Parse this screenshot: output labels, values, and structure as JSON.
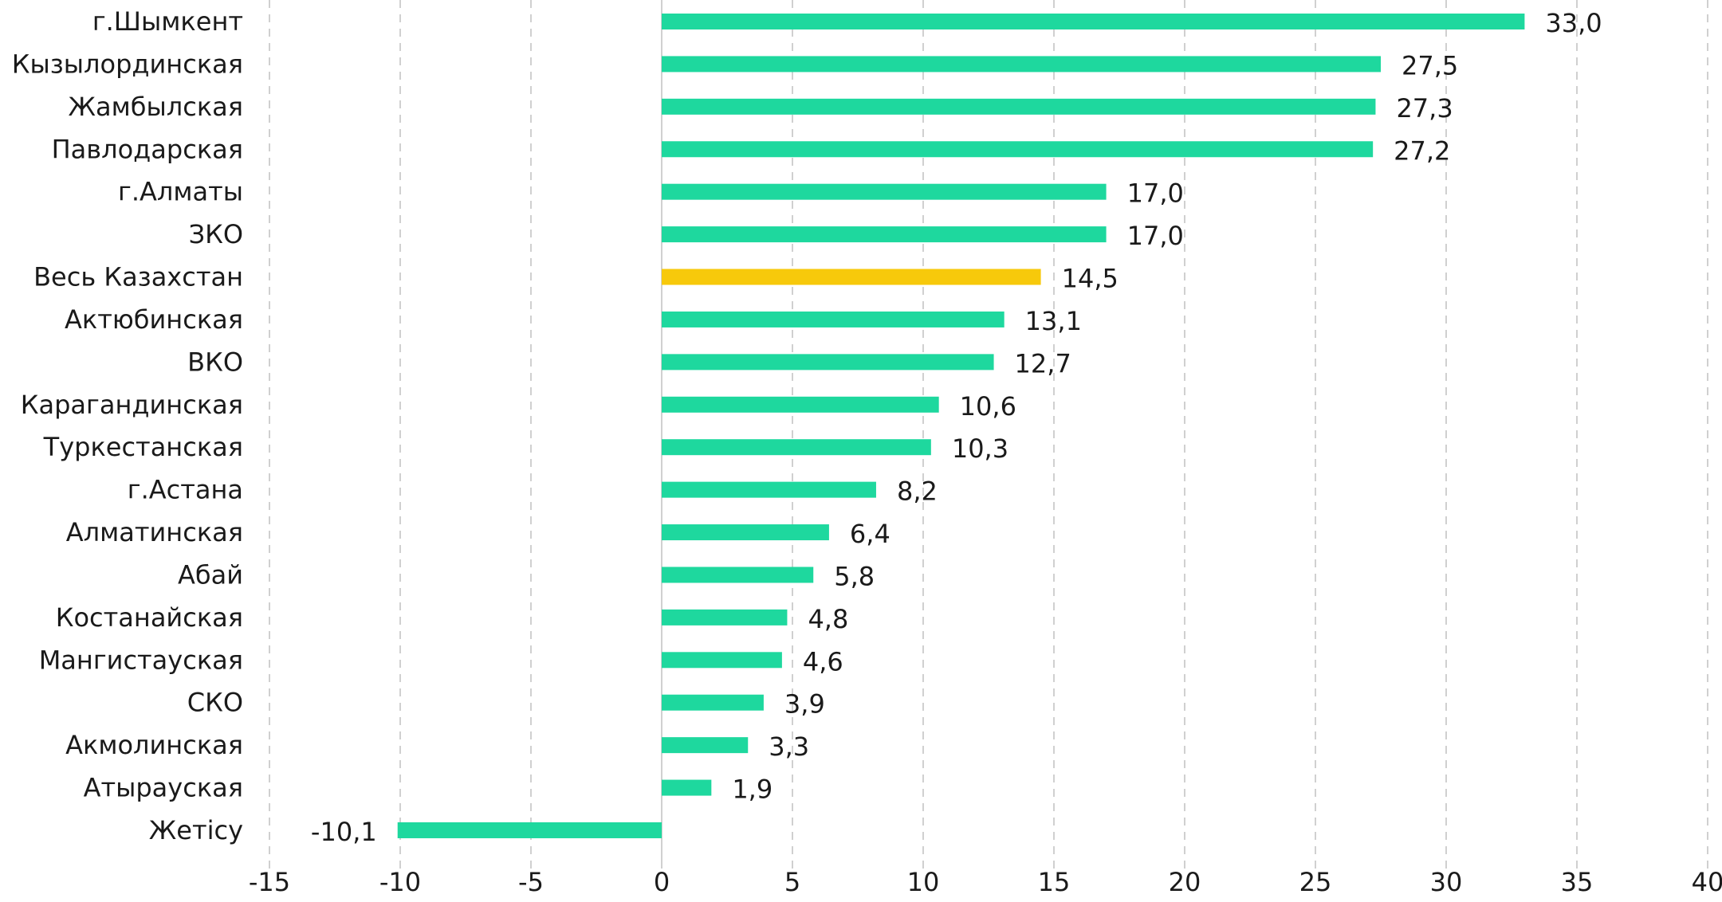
{
  "chart_data": {
    "type": "bar",
    "orientation": "horizontal",
    "title": "",
    "xlabel": "",
    "ylabel": "",
    "xlim": [
      -15,
      40
    ],
    "x_ticks": [
      -15,
      -10,
      -5,
      0,
      5,
      10,
      15,
      20,
      25,
      30,
      35,
      40
    ],
    "grid": "vertical dashed",
    "legend": "none",
    "categories": [
      "г.Шымкент",
      "Кызылординская",
      "Жамбылская",
      "Павлодарская",
      "г.Алматы",
      "ЗКО",
      "Весь Казахстан",
      "Актюбинская",
      "ВКО",
      "Карагандинская",
      "Туркестанская",
      "г.Астана",
      "Алматинская",
      "Абай",
      "Костанайская",
      "Мангистауская",
      "СКО",
      "Акмолинская",
      "Атырауская",
      "Жетісу"
    ],
    "values": [
      33.0,
      27.5,
      27.3,
      27.2,
      17.0,
      17.0,
      14.5,
      13.1,
      12.7,
      10.6,
      10.3,
      8.2,
      6.4,
      5.8,
      4.8,
      4.6,
      3.9,
      3.3,
      1.9,
      -10.1
    ],
    "value_labels": [
      "33,0",
      "27,5",
      "27,3",
      "27,2",
      "17,0",
      "17,0",
      "14,5",
      "13,1",
      "12,7",
      "10,6",
      "10,3",
      "8,2",
      "6,4",
      "5,8",
      "4,8",
      "4,6",
      "3,9",
      "3,3",
      "1,9",
      "-10,1"
    ],
    "highlight_category": "Весь Казахстан",
    "colors": {
      "bar": "#1ed89e",
      "highlight": "#f7c90b",
      "grid": "#d0d0d0",
      "zero_line": "#d0d0d0",
      "text": "#1a1a1a"
    }
  }
}
